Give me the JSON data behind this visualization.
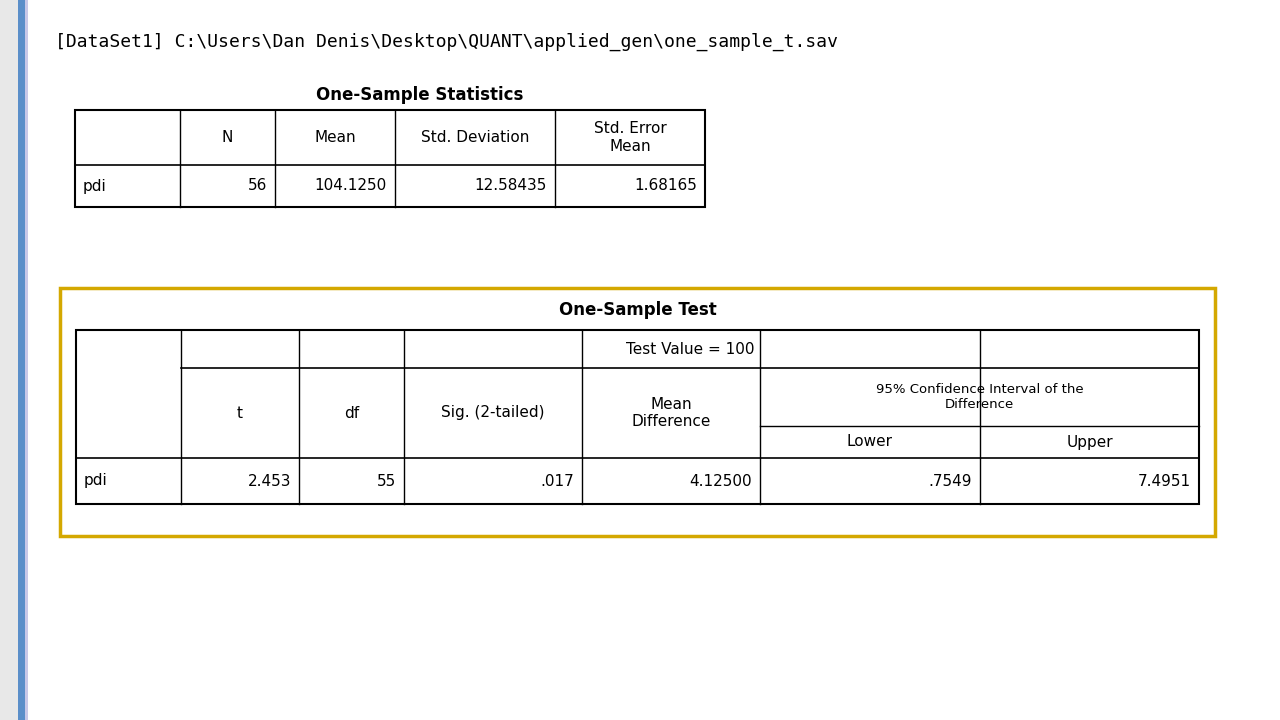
{
  "bg_outer": "#e8e8e8",
  "bg_white": "#ffffff",
  "left_bar_color": "#5b8fc9",
  "left_bar2_color": "#c8c8e8",
  "border_table": "#000000",
  "border_yellow": "#d4a800",
  "text_color": "#000000",
  "filepath_text": "[DataSet1] C:\\Users\\Dan Denis\\Desktop\\QUANT\\applied_gen\\one_sample_t.sav",
  "table1_title": "One-Sample Statistics",
  "t1_headers": [
    "",
    "N",
    "Mean",
    "Std. Deviation",
    "Std. Error\nMean"
  ],
  "t1_row": [
    "pdi",
    "56",
    "104.1250",
    "12.58435",
    "1.68165"
  ],
  "table2_title": "One-Sample Test",
  "test_value_label": "Test Value = 100",
  "ci_label": "95% Confidence Interval of the\nDifference",
  "t2_col_headers_top": [
    "",
    "t",
    "df",
    "Sig. (2-tailed)",
    "Mean\nDifference",
    "Lower",
    "Upper"
  ],
  "t2_row": [
    "pdi",
    "2.453",
    "55",
    ".017",
    "4.12500",
    ".7549",
    "7.4951"
  ],
  "filepath_fontsize": 13,
  "title_fontsize": 12,
  "cell_fontsize": 11,
  "small_fontsize": 9.5
}
